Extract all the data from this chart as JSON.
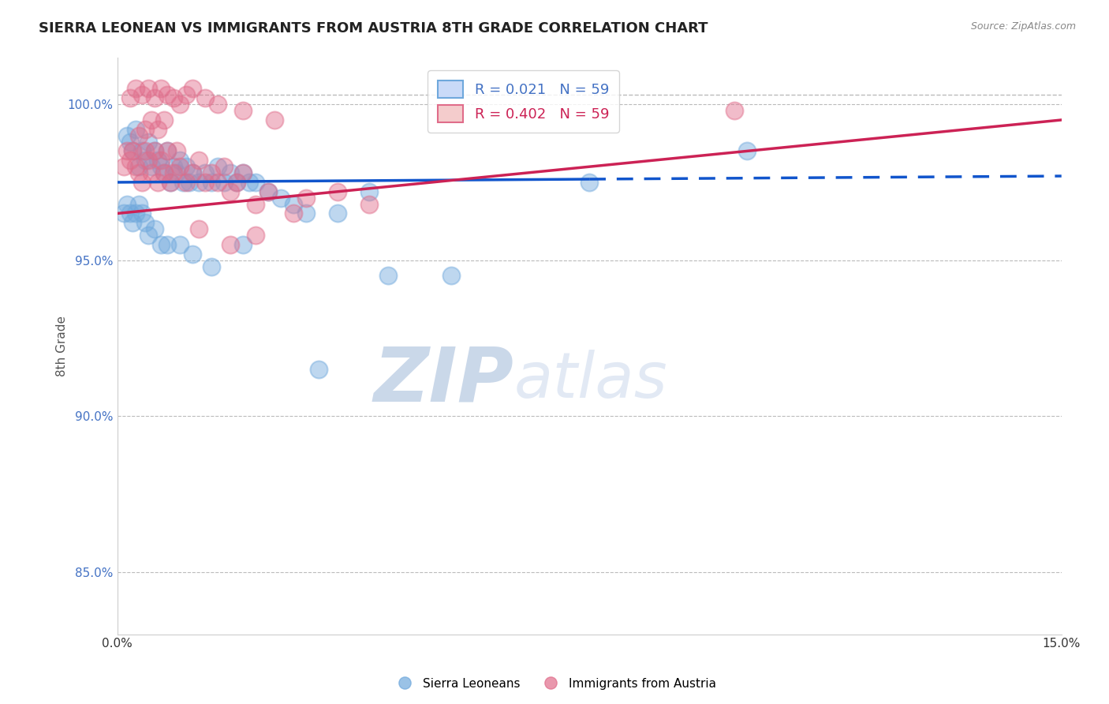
{
  "title": "SIERRA LEONEAN VS IMMIGRANTS FROM AUSTRIA 8TH GRADE CORRELATION CHART",
  "source_text": "Source: ZipAtlas.com",
  "ylabel": "8th Grade",
  "xlim": [
    0.0,
    15.0
  ],
  "ylim": [
    83.0,
    101.5
  ],
  "x_ticks": [
    0.0,
    5.0,
    10.0,
    15.0
  ],
  "x_tick_labels": [
    "0.0%",
    "",
    "",
    "15.0%"
  ],
  "y_ticks": [
    85.0,
    90.0,
    95.0,
    100.0
  ],
  "y_tick_labels": [
    "85.0%",
    "90.0%",
    "95.0%",
    "100.0%"
  ],
  "R_blue": 0.021,
  "N_blue": 59,
  "R_pink": 0.402,
  "N_pink": 59,
  "legend_label_blue": "Sierra Leoneans",
  "legend_label_pink": "Immigrants from Austria",
  "blue_color": "#6fa8dc",
  "pink_color": "#e06c8a",
  "blue_line_color": "#1155cc",
  "pink_line_color": "#cc2255",
  "blue_line_solid_end": 7.5,
  "watermark_zip": "ZIP",
  "watermark_atlas": "atlas",
  "background_color": "#ffffff",
  "grid_color": "#bbbbbb",
  "top_dash_y": 100.3,
  "blue_line_y0": 97.5,
  "blue_line_y1": 97.7,
  "pink_line_y0": 96.5,
  "pink_line_y1": 99.5,
  "blue_scatter_x": [
    0.15,
    0.2,
    0.25,
    0.3,
    0.35,
    0.4,
    0.45,
    0.5,
    0.55,
    0.6,
    0.65,
    0.7,
    0.75,
    0.8,
    0.85,
    0.9,
    0.95,
    1.0,
    1.05,
    1.1,
    1.15,
    1.2,
    1.3,
    1.4,
    1.5,
    1.6,
    1.7,
    1.8,
    1.9,
    2.0,
    2.1,
    2.2,
    2.4,
    2.6,
    2.8,
    3.0,
    3.5,
    4.0,
    0.1,
    0.15,
    0.2,
    0.25,
    0.3,
    0.35,
    0.4,
    0.45,
    0.5,
    0.6,
    0.7,
    0.8,
    1.0,
    1.2,
    1.5,
    2.0,
    4.3,
    5.3,
    7.5,
    3.2,
    10.0
  ],
  "blue_scatter_y": [
    99.0,
    98.8,
    98.5,
    99.2,
    98.0,
    98.5,
    98.2,
    98.8,
    98.0,
    98.5,
    98.2,
    98.0,
    97.8,
    98.5,
    97.5,
    98.0,
    97.8,
    98.2,
    97.5,
    98.0,
    97.5,
    97.8,
    97.5,
    97.8,
    97.5,
    98.0,
    97.5,
    97.8,
    97.5,
    97.8,
    97.5,
    97.5,
    97.2,
    97.0,
    96.8,
    96.5,
    96.5,
    97.2,
    96.5,
    96.8,
    96.5,
    96.2,
    96.5,
    96.8,
    96.5,
    96.2,
    95.8,
    96.0,
    95.5,
    95.5,
    95.5,
    95.2,
    94.8,
    95.5,
    94.5,
    94.5,
    97.5,
    91.5,
    98.5
  ],
  "pink_scatter_x": [
    0.1,
    0.15,
    0.2,
    0.25,
    0.3,
    0.35,
    0.4,
    0.45,
    0.5,
    0.55,
    0.6,
    0.65,
    0.7,
    0.75,
    0.8,
    0.85,
    0.9,
    0.95,
    1.0,
    1.1,
    1.2,
    1.3,
    1.4,
    1.5,
    1.6,
    1.7,
    1.8,
    1.9,
    2.0,
    2.2,
    2.4,
    2.8,
    3.0,
    3.5,
    4.0,
    0.2,
    0.3,
    0.4,
    0.5,
    0.6,
    0.7,
    0.8,
    0.9,
    1.0,
    1.1,
    1.2,
    1.4,
    1.6,
    2.0,
    2.5,
    0.35,
    0.45,
    0.55,
    0.65,
    0.75,
    1.8,
    2.2,
    9.8,
    1.3
  ],
  "pink_scatter_y": [
    98.0,
    98.5,
    98.2,
    98.5,
    98.0,
    97.8,
    97.5,
    98.5,
    98.2,
    97.8,
    98.5,
    97.5,
    98.2,
    97.8,
    98.5,
    97.5,
    97.8,
    98.5,
    98.0,
    97.5,
    97.8,
    98.2,
    97.5,
    97.8,
    97.5,
    98.0,
    97.2,
    97.5,
    97.8,
    96.8,
    97.2,
    96.5,
    97.0,
    97.2,
    96.8,
    100.2,
    100.5,
    100.3,
    100.5,
    100.2,
    100.5,
    100.3,
    100.2,
    100.0,
    100.3,
    100.5,
    100.2,
    100.0,
    99.8,
    99.5,
    99.0,
    99.2,
    99.5,
    99.2,
    99.5,
    95.5,
    95.8,
    99.8,
    96.0
  ]
}
